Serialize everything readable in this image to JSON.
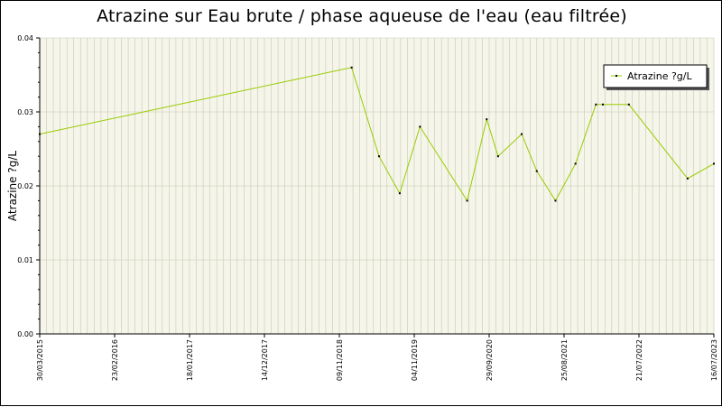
{
  "chart_data": {
    "type": "line",
    "title": "Atrazine sur Eau brute / phase aqueuse de l'eau (eau filtrée)",
    "ylabel": "Atrazine ?g/L",
    "xlabel": "",
    "ylim": [
      0,
      0.04
    ],
    "y_ticks": [
      "0.00",
      "0.01",
      "0.02",
      "0.03",
      "0.04"
    ],
    "x_range": [
      "2015-03-30",
      "2023-07-16"
    ],
    "x_ticks": [
      "30/03/2015",
      "23/02/2016",
      "18/01/2017",
      "14/12/2017",
      "09/11/2018",
      "04/11/2019",
      "29/09/2020",
      "25/08/2021",
      "21/07/2022",
      "16/07/2023"
    ],
    "grid": true,
    "legend_position": "top-right",
    "colors": {
      "line": "#99cc00",
      "marker": "#000000",
      "plot_bg": "#f5f5ea",
      "grid": "#c8c8b4"
    },
    "series": [
      {
        "name": "Atrazine ?g/L",
        "x": [
          "2015-03-30",
          "2019-01-30",
          "2019-06-02",
          "2019-09-03",
          "2019-12-03",
          "2020-07-02",
          "2020-09-28",
          "2020-11-18",
          "2021-03-04",
          "2021-05-11",
          "2021-08-03",
          "2021-11-01",
          "2022-02-01",
          "2022-03-04",
          "2022-06-29",
          "2023-03-20",
          "2023-07-16"
        ],
        "values": [
          0.027,
          0.036,
          0.024,
          0.019,
          0.028,
          0.018,
          0.029,
          0.024,
          0.027,
          0.022,
          0.018,
          0.023,
          0.031,
          0.031,
          0.031,
          0.021,
          0.023
        ]
      }
    ]
  }
}
